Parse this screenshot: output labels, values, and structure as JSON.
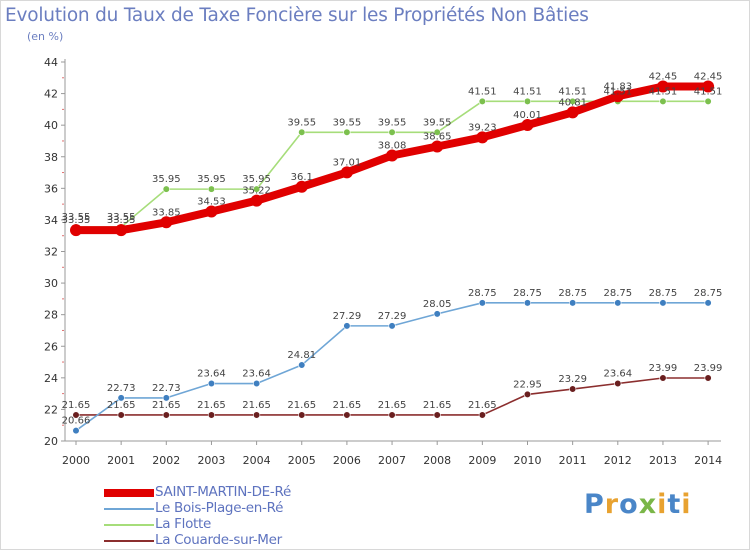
{
  "header": {
    "title": "Evolution du Taux de Taxe Foncière sur les Propriétés Non Bâties",
    "unit": "(en %)"
  },
  "logo": {
    "letters": [
      "P",
      "r",
      "o",
      "x",
      "i",
      "t",
      "i"
    ],
    "colors": [
      "#4a86c8",
      "#e8a230",
      "#4a86c8",
      "#7ab648",
      "#e8a230",
      "#4a86c8",
      "#e8a230"
    ]
  },
  "chart_data": {
    "type": "line",
    "title": "Evolution du Taux de Taxe Foncière sur les Propriétés Non Bâties",
    "ylabel": "(en %)",
    "xlabel": "",
    "categories": [
      "2000",
      "2001",
      "2002",
      "2003",
      "2004",
      "2005",
      "2006",
      "2007",
      "2008",
      "2009",
      "2010",
      "2011",
      "2012",
      "2013",
      "2014"
    ],
    "ylim": [
      20,
      44
    ],
    "yticks": [
      "20",
      "22",
      "24",
      "26",
      "28",
      "30",
      "32",
      "34",
      "36",
      "38",
      "40",
      "42",
      "44"
    ],
    "grid": false,
    "legend_position": "bottom-left",
    "series": [
      {
        "name": "SAINT-MARTIN-DE-Ré",
        "color": "#e00000",
        "marker": "#e00000",
        "values": [
          33.35,
          33.35,
          33.85,
          34.53,
          35.22,
          36.1,
          37.01,
          38.08,
          38.65,
          39.23,
          40.01,
          40.81,
          41.83,
          42.45,
          42.45
        ],
        "labels": [
          "33.35",
          "33.35",
          "33.85",
          "34.53",
          "35.22",
          "36.1",
          "37.01",
          "38.08",
          "38.65",
          "39.23",
          "40.01",
          "40.81",
          "41.83",
          "42.45",
          "42.45"
        ]
      },
      {
        "name": "Le Bois-Plage-en-Ré",
        "color": "#6fa6d6",
        "marker": "#3f7fc0",
        "values": [
          20.66,
          22.73,
          22.73,
          23.64,
          23.64,
          24.81,
          27.29,
          27.29,
          28.05,
          28.75,
          28.75,
          28.75,
          28.75,
          28.75,
          28.75
        ],
        "labels": [
          "20.66",
          "22.73",
          "22.73",
          "23.64",
          "23.64",
          "24.81",
          "27.29",
          "27.29",
          "28.05",
          "28.75",
          "28.75",
          "28.75",
          "28.75",
          "28.75",
          "28.75"
        ]
      },
      {
        "name": "La Flotte",
        "color": "#a6dd7a",
        "marker": "#7cc04e",
        "values": [
          33.55,
          33.55,
          35.95,
          35.95,
          35.95,
          39.55,
          39.55,
          39.55,
          39.55,
          41.51,
          41.51,
          41.51,
          41.51,
          41.51,
          41.51
        ],
        "labels": [
          "33.55",
          "33.55",
          "35.95",
          "35.95",
          "35.95",
          "39.55",
          "39.55",
          "39.55",
          "39.55",
          "41.51",
          "41.51",
          "41.51",
          "41.51",
          "41.51",
          "41.51"
        ]
      },
      {
        "name": "La Couarde-sur-Mer",
        "color": "#8b2e2e",
        "marker": "#6a1f1f",
        "values": [
          21.65,
          21.65,
          21.65,
          21.65,
          21.65,
          21.65,
          21.65,
          21.65,
          21.65,
          21.65,
          22.95,
          23.29,
          23.64,
          23.99,
          23.99
        ],
        "labels": [
          "21.65",
          "21.65",
          "21.65",
          "21.65",
          "21.65",
          "21.65",
          "21.65",
          "21.65",
          "21.65",
          "21.65",
          "22.95",
          "23.29",
          "23.64",
          "23.99",
          "23.99"
        ]
      }
    ]
  }
}
